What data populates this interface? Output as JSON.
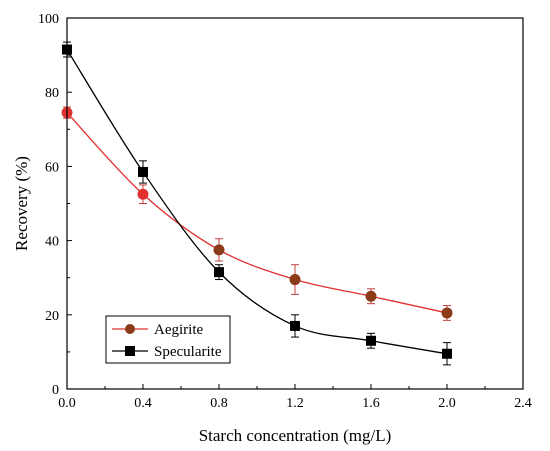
{
  "chart_data": {
    "type": "scatter",
    "xlabel": "Starch concentration (mg/L)",
    "ylabel": "Recovery (%)",
    "xlim": [
      0,
      2.4
    ],
    "ylim": [
      0,
      100
    ],
    "xticks": [
      "0.0",
      "0.4",
      "0.8",
      "1.2",
      "1.6",
      "2.0",
      "2.4"
    ],
    "yticks": [
      "0",
      "20",
      "40",
      "60",
      "80",
      "100"
    ],
    "grid": false,
    "legend": "bottom-left",
    "series": [
      {
        "name": "Aegirite",
        "marker": "circle",
        "color": "#8B3A1A",
        "line_color": "#E03030",
        "x": [
          0.0,
          0.4,
          0.8,
          1.2,
          1.6,
          2.0
        ],
        "y": [
          74.5,
          52.5,
          37.5,
          29.5,
          25.0,
          20.5
        ],
        "err": [
          1.5,
          2.5,
          3.0,
          4.0,
          2.0,
          2.0
        ]
      },
      {
        "name": "Specularite",
        "marker": "square",
        "color": "#000000",
        "line_color": "#000000",
        "x": [
          0.0,
          0.4,
          0.8,
          1.2,
          1.6,
          2.0
        ],
        "y": [
          91.5,
          58.5,
          31.5,
          17.0,
          13.0,
          9.5
        ],
        "err": [
          2.0,
          3.0,
          2.0,
          3.0,
          2.0,
          3.0
        ]
      }
    ]
  }
}
